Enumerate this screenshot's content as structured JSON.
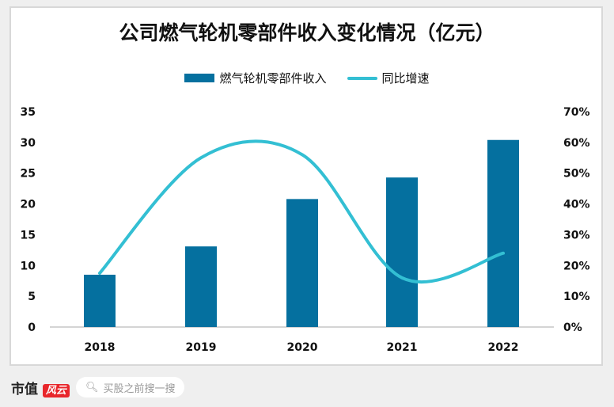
{
  "chart_data": {
    "type": "bar",
    "title": "公司燃气轮机零部件收入变化情况（亿元）",
    "categories": [
      "2018",
      "2019",
      "2020",
      "2021",
      "2022"
    ],
    "series": [
      {
        "name": "燃气轮机零部件收入",
        "type": "bar",
        "axis": "left",
        "values": [
          8.5,
          13.1,
          20.8,
          24.3,
          30.4
        ]
      },
      {
        "name": "同比增速",
        "type": "line",
        "axis": "right",
        "values": [
          17.5,
          55,
          56,
          16,
          24
        ]
      }
    ],
    "ylim": [
      0,
      35
    ],
    "yticks": [
      "0",
      "5",
      "10",
      "15",
      "20",
      "25",
      "30",
      "35"
    ],
    "y2lim": [
      0,
      70
    ],
    "y2ticks": [
      "0%",
      "10%",
      "20%",
      "30%",
      "40%",
      "50%",
      "60%",
      "70%"
    ],
    "legend": "top",
    "grid": false,
    "colors": {
      "bar": "#05709f",
      "line": "#33bfd3"
    }
  },
  "footer": {
    "brand": "市值",
    "brand_red": "风云",
    "search_placeholder": "买股之前搜一搜"
  }
}
